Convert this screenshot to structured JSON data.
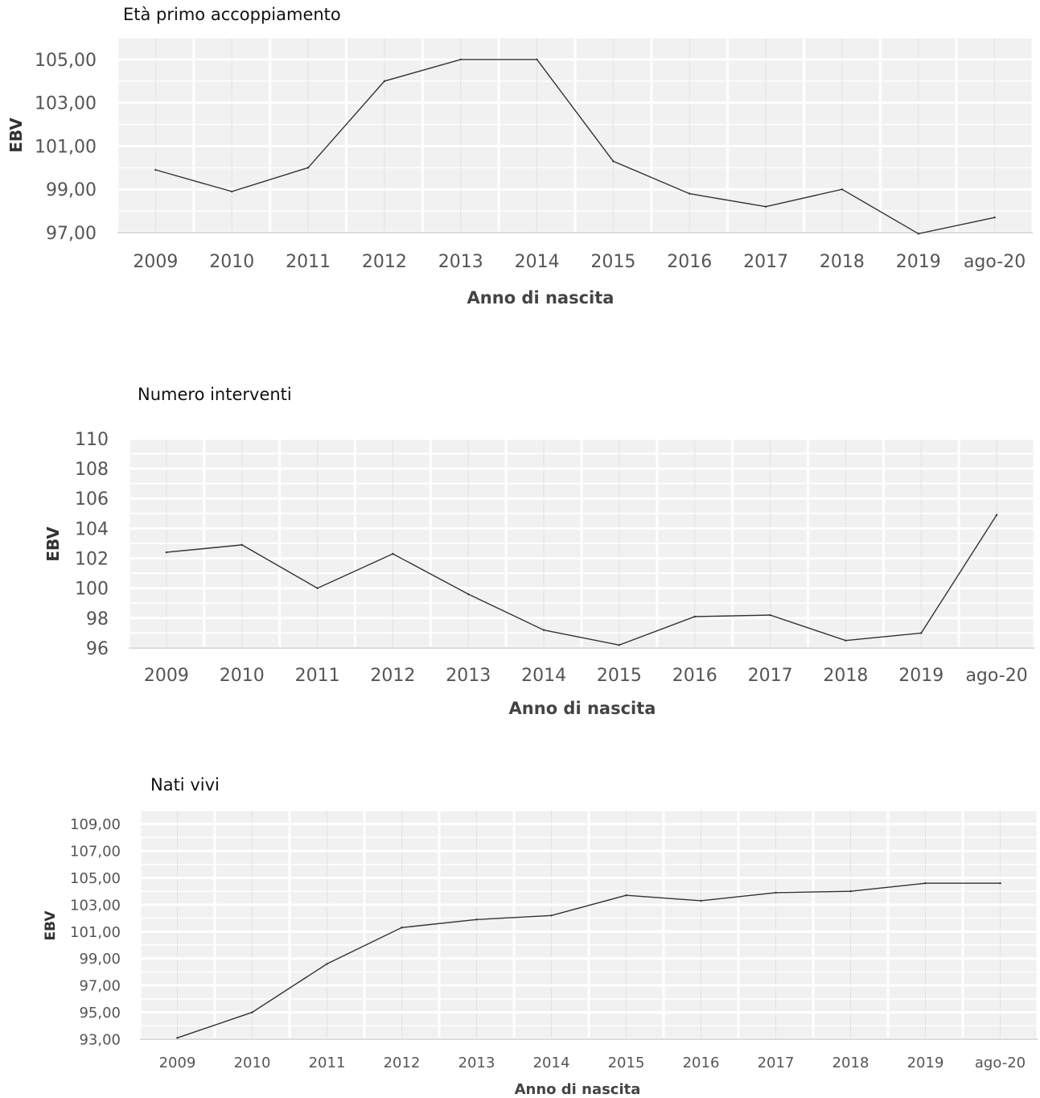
{
  "chart_data": [
    {
      "type": "line",
      "title": "Età primo accoppiamento",
      "xlabel": "Anno di nascita",
      "ylabel": "EBV",
      "categories": [
        "2009",
        "2010",
        "2011",
        "2012",
        "2013",
        "2014",
        "2015",
        "2016",
        "2017",
        "2018",
        "2019",
        "ago-20"
      ],
      "values": [
        99.9,
        98.9,
        100.0,
        104.0,
        105.0,
        105.0,
        100.3,
        98.8,
        98.2,
        99.0,
        96.95,
        97.7
      ],
      "ylim": [
        97,
        106
      ],
      "yticks": [
        "105,00",
        "103,00",
        "101,00",
        "99,00",
        "97,00"
      ],
      "grid": true,
      "legend": "none"
    },
    {
      "type": "line",
      "title": "Numero interventi",
      "xlabel": "Anno di nascita",
      "ylabel": "EBV",
      "categories": [
        "2009",
        "2010",
        "2011",
        "2012",
        "2013",
        "2014",
        "2015",
        "2016",
        "2017",
        "2018",
        "2019",
        "ago-20"
      ],
      "values": [
        102.4,
        102.9,
        100.0,
        102.3,
        99.6,
        97.2,
        96.2,
        98.1,
        98.2,
        96.5,
        97.0,
        104.9
      ],
      "ylim": [
        96,
        110
      ],
      "yticks": [
        "110",
        "108",
        "106",
        "104",
        "102",
        "100",
        "98",
        "96"
      ],
      "grid": true,
      "legend": "none"
    },
    {
      "type": "line",
      "title": "Nati vivi",
      "xlabel": "Anno di nascita",
      "ylabel": "EBV",
      "categories": [
        "2009",
        "2010",
        "2011",
        "2012",
        "2013",
        "2014",
        "2015",
        "2016",
        "2017",
        "2018",
        "2019",
        "ago-20"
      ],
      "values": [
        93.1,
        95.0,
        98.6,
        101.3,
        101.9,
        102.2,
        103.7,
        103.3,
        103.9,
        104.0,
        104.6,
        104.6
      ],
      "ylim": [
        93,
        110
      ],
      "yticks": [
        "109,00",
        "107,00",
        "105,00",
        "103,00",
        "101,00",
        "99,00",
        "97,00",
        "95,00",
        "93,00"
      ],
      "grid": true,
      "legend": "none"
    }
  ]
}
